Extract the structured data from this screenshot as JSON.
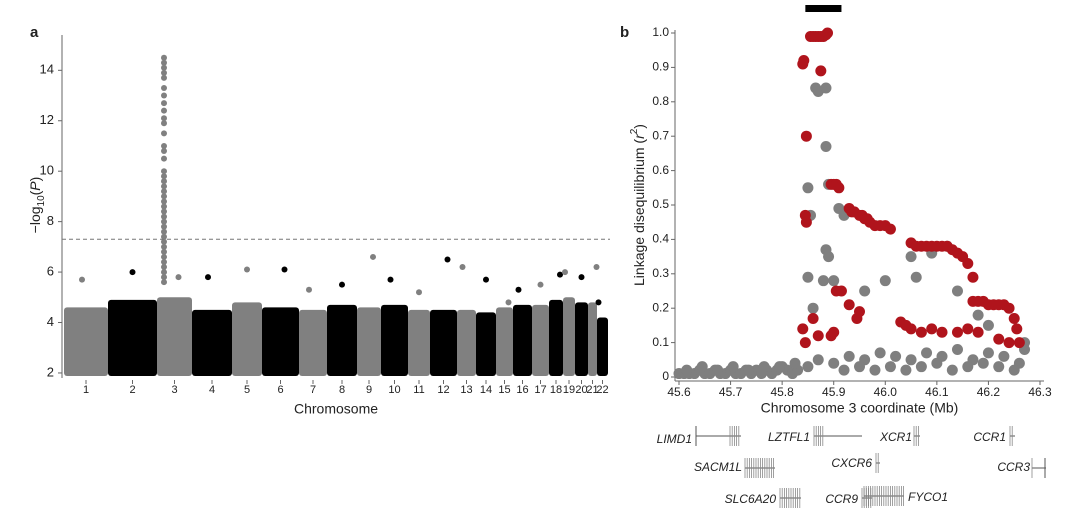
{
  "chart_data": [
    {
      "type": "manhattan",
      "panel": "a",
      "xlabel": "Chromosome",
      "ylabel": [
        "−log",
        "10",
        "(",
        "P",
        ")"
      ],
      "categories": [
        "1",
        "2",
        "3",
        "4",
        "5",
        "6",
        "7",
        "8",
        "9",
        "10",
        "11",
        "12",
        "13",
        "14",
        "15",
        "16",
        "17",
        "18",
        "19",
        "20",
        "21",
        "22"
      ],
      "band_tops": [
        4.6,
        4.9,
        5.0,
        4.5,
        4.8,
        4.6,
        4.5,
        4.7,
        4.6,
        4.7,
        4.5,
        4.5,
        4.5,
        4.4,
        4.6,
        4.7,
        4.7,
        4.9,
        5.0,
        4.8,
        4.8,
        4.2
      ],
      "values": [
        5.7,
        6.0,
        5.8,
        5.8,
        6.1,
        6.1,
        5.3,
        5.5,
        6.6,
        5.7,
        5.2,
        6.5,
        6.2,
        5.7,
        4.8,
        5.3,
        5.5,
        5.9,
        6.0,
        5.8,
        6.2,
        4.8
      ],
      "column_values": [
        14.5,
        14.3,
        14.1,
        13.9,
        13.7,
        13.3,
        13.0,
        12.7,
        12.4,
        12.1,
        11.9,
        11.5,
        11.0,
        10.8,
        10.5,
        10.0,
        9.8,
        9.6,
        9.4,
        9.2,
        9.0,
        8.8,
        8.6,
        8.4,
        8.2,
        8.0,
        7.8,
        7.6,
        7.4,
        7.2,
        7.0,
        6.8,
        6.6,
        6.4,
        6.2,
        6.0,
        5.8,
        5.6
      ],
      "colors": [
        "#808080",
        "#000000"
      ],
      "threshold": 7.3,
      "ylim": [
        1.8,
        15.4
      ],
      "yticks": [
        2,
        4,
        6,
        8,
        10,
        12,
        14
      ]
    },
    {
      "type": "scatter",
      "panel": "b",
      "xlabel": "Chromosome 3 coordinate (Mb)",
      "ylabel": [
        "Linkage disequilibrium (",
        "r",
        "2",
        ")"
      ],
      "top_bar": [
        45.845,
        45.915
      ],
      "xlim": [
        45.6,
        46.3
      ],
      "xticks": [
        45.6,
        45.7,
        45.8,
        45.9,
        {
          "value": 46,
          "label": "46.0"
        },
        46.1,
        46.2,
        46.3
      ],
      "ylim": [
        0,
        1
      ],
      "yticks": [
        0,
        0.1,
        0.2,
        0.3,
        0.4,
        0.5,
        0.6,
        0.7,
        0.8,
        0.9,
        {
          "value": 1,
          "label": "1.0"
        }
      ],
      "series": [
        {
          "color": "#7f7f7f",
          "x": [
            45.6,
            45.61,
            45.62,
            45.63,
            45.64,
            45.65,
            45.66,
            45.67,
            45.68,
            45.69,
            45.7,
            45.71,
            45.72,
            45.73,
            45.74,
            45.75,
            45.76,
            45.77,
            45.78,
            45.79,
            45.8,
            45.81,
            45.82,
            45.83,
            45.615,
            45.645,
            45.675,
            45.705,
            45.735,
            45.765,
            45.795,
            45.825,
            45.85,
            45.87,
            45.9,
            45.93,
            45.96,
            45.99,
            46.02,
            46.05,
            46.08,
            46.11,
            46.14,
            46.17,
            46.2,
            46.23,
            46.26,
            45.92,
            45.95,
            45.98,
            46.01,
            46.04,
            46.07,
            46.1,
            46.13,
            46.16,
            46.19,
            46.22,
            46.25,
            45.85,
            45.855,
            45.865,
            45.87,
            45.885,
            45.885,
            45.89,
            45.885,
            45.89,
            45.88,
            45.86,
            45.85,
            45.9,
            45.91,
            45.92,
            46.05,
            46.06,
            46.0,
            46.09,
            46.12,
            46.14,
            45.96,
            46.18,
            46.2,
            46.27,
            46.27
          ],
          "values": [
            0.01,
            0.01,
            0.01,
            0.01,
            0.02,
            0.01,
            0.01,
            0.02,
            0.01,
            0.01,
            0.02,
            0.01,
            0.01,
            0.02,
            0.01,
            0.02,
            0.01,
            0.02,
            0.01,
            0.02,
            0.03,
            0.02,
            0.01,
            0.02,
            0.02,
            0.03,
            0.02,
            0.03,
            0.02,
            0.03,
            0.03,
            0.04,
            0.03,
            0.05,
            0.04,
            0.06,
            0.05,
            0.07,
            0.06,
            0.05,
            0.07,
            0.06,
            0.08,
            0.05,
            0.07,
            0.06,
            0.04,
            0.02,
            0.03,
            0.02,
            0.03,
            0.02,
            0.03,
            0.04,
            0.02,
            0.03,
            0.04,
            0.03,
            0.02,
            0.55,
            0.47,
            0.84,
            0.83,
            0.84,
            0.67,
            0.56,
            0.37,
            0.35,
            0.28,
            0.2,
            0.29,
            0.28,
            0.49,
            0.47,
            0.35,
            0.29,
            0.28,
            0.36,
            0.38,
            0.25,
            0.25,
            0.18,
            0.15,
            0.1,
            0.08
          ]
        },
        {
          "color": "#b0141c",
          "x": [
            45.84,
            45.842,
            45.847,
            45.845,
            45.847,
            45.855,
            45.86,
            45.865,
            45.87,
            45.875,
            45.88,
            45.885,
            45.888,
            45.875,
            45.84,
            45.845,
            45.86,
            45.87,
            45.895,
            45.9,
            45.905,
            45.91,
            45.895,
            45.9,
            45.905,
            45.915,
            45.93,
            45.935,
            45.94,
            45.95,
            45.955,
            45.96,
            45.965,
            45.97,
            45.98,
            45.99,
            46.0,
            46.01,
            45.93,
            45.945,
            45.95,
            46.05,
            46.06,
            46.07,
            46.08,
            46.09,
            46.1,
            46.11,
            46.12,
            46.13,
            46.14,
            46.15,
            46.16,
            46.17,
            46.03,
            46.04,
            46.05,
            46.07,
            46.09,
            46.11,
            46.14,
            46.16,
            46.17,
            46.18,
            46.19,
            46.2,
            46.21,
            46.22,
            46.23,
            46.24,
            46.25,
            46.255,
            46.26,
            46.18,
            46.22,
            46.24
          ],
          "values": [
            0.91,
            0.92,
            0.7,
            0.47,
            0.45,
            0.99,
            0.99,
            0.99,
            0.99,
            0.99,
            0.99,
            0.995,
            1.0,
            0.89,
            0.14,
            0.1,
            0.17,
            0.12,
            0.56,
            0.56,
            0.56,
            0.55,
            0.12,
            0.13,
            0.25,
            0.25,
            0.49,
            0.48,
            0.48,
            0.47,
            0.47,
            0.46,
            0.46,
            0.45,
            0.44,
            0.44,
            0.44,
            0.43,
            0.21,
            0.17,
            0.19,
            0.39,
            0.38,
            0.38,
            0.38,
            0.38,
            0.38,
            0.38,
            0.38,
            0.37,
            0.36,
            0.35,
            0.33,
            0.29,
            0.16,
            0.15,
            0.14,
            0.13,
            0.14,
            0.13,
            0.13,
            0.14,
            0.22,
            0.22,
            0.22,
            0.21,
            0.21,
            0.21,
            0.21,
            0.2,
            0.17,
            0.14,
            0.1,
            0.13,
            0.11,
            0.1
          ]
        }
      ]
    }
  ],
  "genes": [
    "LIMD1",
    "LZTFL1",
    "XCR1",
    "CCR1",
    "SACM1L",
    "CXCR6",
    "CCR3",
    "SLC6A20",
    "CCR9",
    "FYCO1"
  ]
}
